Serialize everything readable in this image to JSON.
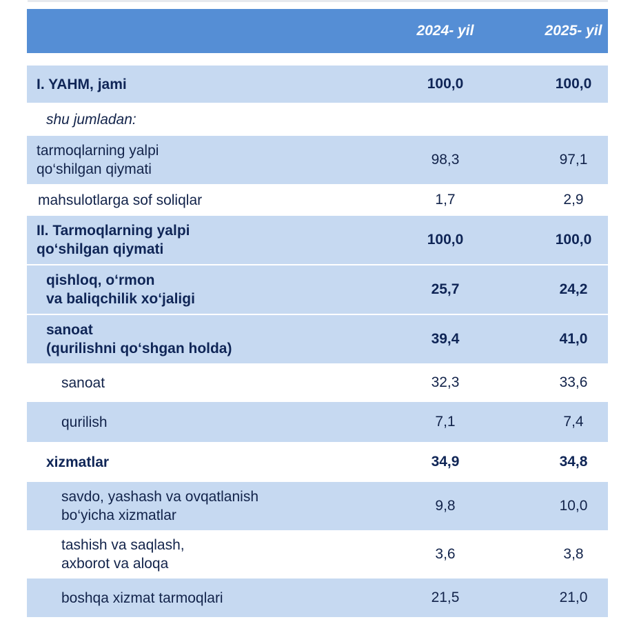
{
  "header": {
    "col_2024": "2024- yil",
    "col_2025": "2025- yil"
  },
  "rows": [
    {
      "label": "I. YAHM, jami",
      "v2024": "100,0",
      "v2025": "100,0"
    },
    {
      "label": "shu jumladan:",
      "v2024": "",
      "v2025": ""
    },
    {
      "label": "tarmoqlarning yalpi\nqo‘shilgan qiymati",
      "v2024": "98,3",
      "v2025": "97,1"
    },
    {
      "label": "mahsulotlarga sof soliqlar",
      "v2024": "1,7",
      "v2025": "2,9"
    },
    {
      "label": "II. Tarmoqlarning yalpi\nqo‘shilgan qiymati",
      "v2024": "100,0",
      "v2025": "100,0"
    },
    {
      "label": "qishloq, o‘rmon\nva baliqchilik xo‘jaligi",
      "v2024": "25,7",
      "v2025": "24,2"
    },
    {
      "label": "sanoat\n(qurilishni qo‘shgan holda)",
      "v2024": "39,4",
      "v2025": "41,0"
    },
    {
      "label": "sanoat",
      "v2024": "32,3",
      "v2025": "33,6"
    },
    {
      "label": "qurilish",
      "v2024": "7,1",
      "v2025": "7,4"
    },
    {
      "label": "xizmatlar",
      "v2024": "34,9",
      "v2025": "34,8"
    },
    {
      "label": "savdo, yashash va ovqatlanish\nbo‘yicha xizmatlar",
      "v2024": "9,8",
      "v2025": "10,0"
    },
    {
      "label": "tashish va saqlash,\naxborot va aloqa",
      "v2024": "3,6",
      "v2025": "3,8"
    },
    {
      "label": "boshqa xizmat tarmoqlari",
      "v2024": "21,5",
      "v2025": "21,0"
    }
  ]
}
